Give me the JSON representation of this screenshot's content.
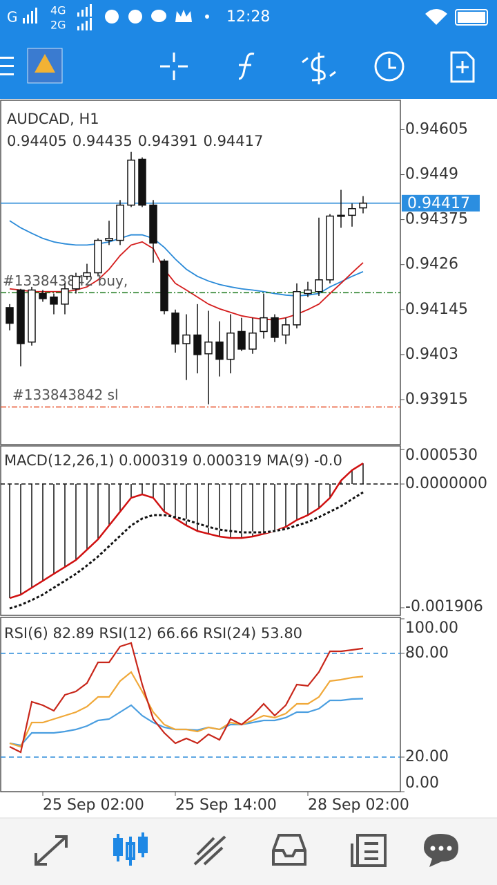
{
  "status_bar": {
    "signal1": "G",
    "net1": "4G",
    "net2": "2G",
    "time": "12:28"
  },
  "chart": {
    "type": "candlestick",
    "symbol": "AUDCAD, H1",
    "categories": [
      null,
      null,
      null,
      "25 Sep 02:00",
      null,
      null,
      null,
      null,
      null,
      null,
      null,
      null,
      null,
      null,
      null,
      "25 Sep 14:00",
      null,
      null,
      null,
      null,
      null,
      null,
      null,
      null,
      null,
      null,
      null,
      "28 Sep 02:00",
      null,
      null,
      null,
      null,
      null
    ],
    "open": [
      0.9415,
      0.94195,
      0.94062,
      0.94186,
      0.94177,
      0.94159,
      0.94198,
      0.9423,
      0.94239,
      0.94322,
      0.94322,
      0.94412,
      0.94529,
      0.94412,
      0.94269,
      0.94136,
      0.94058,
      0.9408,
      0.94032,
      0.94062,
      0.94018,
      0.94089,
      0.94044,
      0.94089,
      0.94124,
      0.9408,
      0.94106,
      0.94186,
      0.94191,
      0.94221,
      0.94384,
      0.94386,
      0.94405
    ],
    "high": [
      0.94159,
      0.94198,
      0.94203,
      0.94195,
      0.94186,
      0.94212,
      0.94239,
      0.94262,
      0.94327,
      0.94372,
      0.94425,
      0.94548,
      0.94534,
      0.94425,
      0.94274,
      0.94145,
      0.94133,
      0.94159,
      0.94142,
      0.94115,
      0.94133,
      0.94124,
      0.94124,
      0.94186,
      0.94133,
      0.94124,
      0.94212,
      0.94216,
      0.9438,
      0.94389,
      0.94451,
      0.94416,
      0.94435
    ],
    "low": [
      0.94092,
      0.94,
      0.94053,
      0.94165,
      0.94133,
      0.94133,
      0.94186,
      0.94221,
      0.9423,
      0.9431,
      0.9431,
      0.94407,
      0.94407,
      0.94265,
      0.94133,
      0.94035,
      0.93965,
      0.93982,
      0.93903,
      0.93974,
      0.93982,
      0.94039,
      0.94032,
      0.94071,
      0.94062,
      0.94057,
      0.94097,
      0.94177,
      0.9418,
      0.94212,
      0.94354,
      0.94357,
      0.94391
    ],
    "close": [
      0.9411,
      0.94058,
      0.94195,
      0.94173,
      0.94159,
      0.94198,
      0.9423,
      0.94239,
      0.94322,
      0.94327,
      0.94412,
      0.94527,
      0.94412,
      0.94315,
      0.94142,
      0.94057,
      0.9408,
      0.9403,
      0.94062,
      0.94018,
      0.94085,
      0.94044,
      0.94085,
      0.94124,
      0.94074,
      0.94106,
      0.94191,
      0.94195,
      0.94221,
      0.94384,
      0.94386,
      0.94403,
      0.94417
    ],
    "ylim": [
      0.938,
      0.9468
    ],
    "yticks": [
      0.94605,
      0.9449,
      0.94375,
      0.9426,
      0.94145,
      0.9403,
      0.93915
    ],
    "current_price": 0.94417,
    "ma": [
      {
        "color": "#2a8ad8",
        "values": [
          0.94372,
          0.94354,
          0.9434,
          0.94327,
          0.94318,
          0.94313,
          0.9431,
          0.9431,
          0.94313,
          0.94318,
          0.94327,
          0.94336,
          0.94336,
          0.94327,
          0.94304,
          0.94274,
          0.94248,
          0.9423,
          0.94218,
          0.94209,
          0.94203,
          0.94198,
          0.94195,
          0.94191,
          0.94186,
          0.94182,
          0.9418,
          0.94182,
          0.94186,
          0.94203,
          0.94216,
          0.9423,
          0.94242
        ]
      },
      {
        "color": "#d41c1c",
        "values": [
          0.94198,
          0.94195,
          0.94191,
          0.94191,
          0.94191,
          0.94191,
          0.94195,
          0.94203,
          0.94221,
          0.94248,
          0.94283,
          0.9431,
          0.94318,
          0.94301,
          0.94248,
          0.94212,
          0.94195,
          0.94177,
          0.94159,
          0.94147,
          0.94138,
          0.94129,
          0.94124,
          0.9412,
          0.94119,
          0.94124,
          0.94133,
          0.94145,
          0.94159,
          0.94186,
          0.94212,
          0.94239,
          0.94265
        ]
      }
    ],
    "orders": [
      {
        "label": "#133843842 buy,",
        "price": 0.94188,
        "color": "#1f7a1f"
      },
      {
        "label": "#133843842 sl",
        "price": 0.93896,
        "color": "#e8502a"
      }
    ]
  },
  "macd": {
    "type": "bar",
    "title": "MACD(12,26,1) 0.000319 0.000319 MA(9) -0.0",
    "values": [
      -0.001757,
      -0.001704,
      -0.001597,
      -0.001491,
      -0.001384,
      -0.001278,
      -0.001171,
      -0.001012,
      -0.000852,
      -0.000639,
      -0.000426,
      -0.000213,
      -0.00016,
      -0.000213,
      -0.000426,
      -0.000532,
      -0.000639,
      -0.000724,
      -0.000767,
      -0.000809,
      -0.000831,
      -0.000831,
      -0.000809,
      -0.000767,
      -0.000724,
      -0.00066,
      -0.000554,
      -0.000479,
      -0.000373,
      -0.000213,
      5.3e-05,
      0.000213,
      0.000319
    ],
    "signal": [
      -0.001917,
      -0.001863,
      -0.001789,
      -0.001704,
      -0.001597,
      -0.001491,
      -0.001384,
      -0.001256,
      -0.001118,
      -0.000958,
      -0.000799,
      -0.000639,
      -0.000532,
      -0.000479,
      -0.000479,
      -0.000511,
      -0.000554,
      -0.000607,
      -0.00066,
      -0.000703,
      -0.000724,
      -0.000745,
      -0.000745,
      -0.000745,
      -0.000724,
      -0.000692,
      -0.000639,
      -0.000586,
      -0.000511,
      -0.000426,
      -0.000341,
      -0.000234,
      -0.000128
    ],
    "line_color": "#d01010",
    "ylim": [
      -0.002023,
      0.000586
    ],
    "yticks": [
      {
        "value": 0.00053,
        "label": "0.000530"
      },
      {
        "value": 0,
        "label": "0.0000000"
      },
      {
        "value": -0.001906,
        "label": "-0.001906"
      }
    ]
  },
  "rsi": {
    "type": "line",
    "title": "RSI(6) 82.89 RSI(12) 66.66 RSI(24) 53.80",
    "series": [
      {
        "name": "RSI(6)",
        "color": "#c8261a",
        "values": [
          26,
          22.8,
          52,
          50,
          46.8,
          56,
          58,
          62.8,
          74.8,
          74.8,
          84,
          86,
          62,
          42,
          34,
          28,
          30.8,
          28,
          33.2,
          30,
          42,
          38.8,
          44,
          50.8,
          44,
          50,
          62,
          61.2,
          69.2,
          81.2,
          81.2,
          82,
          82.89
        ]
      },
      {
        "name": "RSI(12)",
        "color": "#f0a838",
        "values": [
          28,
          26,
          40,
          40,
          42,
          44,
          46,
          49.2,
          54.8,
          54.8,
          64,
          69.2,
          58,
          46,
          38.8,
          36,
          36,
          34.8,
          37.2,
          36,
          40,
          38.8,
          41.2,
          44,
          42.8,
          45.2,
          50.8,
          50.8,
          54.8,
          64,
          64.8,
          66,
          66.66
        ]
      },
      {
        "name": "RSI(24)",
        "color": "#4a9ee0",
        "values": [
          28,
          26.8,
          34,
          34,
          34,
          34.8,
          36,
          38,
          41.2,
          42,
          46,
          50,
          44,
          40,
          37.2,
          36,
          36,
          35.6,
          37.2,
          36,
          38.8,
          38.8,
          40,
          41.2,
          41.2,
          42.8,
          46,
          46,
          48,
          52.8,
          52.8,
          53.6,
          53.8
        ]
      }
    ],
    "ylim": [
      0,
      100
    ],
    "yticks": [
      {
        "value": 100,
        "label": "100.00"
      },
      {
        "value": 80,
        "label": "80.00"
      },
      {
        "value": 20,
        "label": "20.00"
      },
      {
        "value": 0,
        "label": "0.00"
      }
    ],
    "levels": [
      80,
      20
    ]
  }
}
